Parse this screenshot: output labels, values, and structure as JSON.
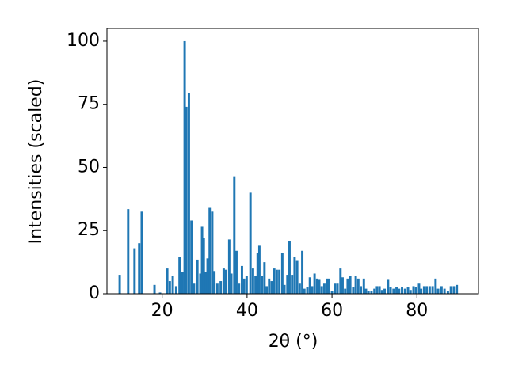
{
  "chart_data": {
    "type": "bar",
    "x_label": "2θ (°)",
    "y_label": "Intensities (scaled)",
    "color": "#1f77b4",
    "x": [
      10.0,
      12.0,
      13.5,
      14.6,
      15.2,
      18.2,
      19.5,
      21.2,
      21.8,
      22.5,
      23.3,
      24.1,
      24.8,
      25.3,
      25.7,
      26.3,
      26.9,
      27.5,
      28.3,
      29.0,
      29.4,
      29.8,
      30.3,
      30.7,
      31.2,
      31.8,
      32.3,
      33.0,
      33.8,
      34.5,
      35.0,
      35.8,
      36.3,
      37.0,
      37.5,
      38.1,
      38.8,
      39.3,
      39.9,
      40.8,
      41.4,
      42.0,
      42.5,
      42.9,
      43.5,
      44.1,
      44.6,
      45.2,
      45.8,
      46.4,
      47.0,
      47.6,
      48.3,
      48.8,
      49.5,
      50.0,
      50.6,
      51.2,
      51.8,
      52.4,
      53.0,
      53.5,
      54.2,
      54.8,
      55.3,
      55.9,
      56.5,
      57.0,
      57.6,
      58.2,
      58.8,
      59.3,
      60.0,
      60.7,
      61.3,
      62.0,
      62.5,
      63.1,
      63.7,
      64.3,
      65.0,
      65.6,
      66.2,
      66.8,
      67.5,
      68.0,
      68.6,
      69.3,
      70.0,
      70.6,
      71.2,
      71.8,
      72.4,
      73.2,
      73.8,
      74.5,
      75.2,
      75.8,
      76.5,
      77.2,
      77.9,
      78.5,
      79.2,
      79.8,
      80.5,
      81.0,
      81.7,
      82.3,
      83.0,
      83.7,
      84.4,
      85.0,
      85.8,
      86.5,
      87.3,
      88.0,
      88.7,
      89.4
    ],
    "values": [
      7.5,
      33.5,
      18,
      20,
      32.5,
      3.5,
      0.5,
      10,
      5,
      7,
      3,
      14.5,
      8.5,
      100,
      74,
      79.5,
      29,
      4,
      13.5,
      8,
      26.5,
      22,
      8.5,
      14,
      34,
      32.5,
      9,
      4,
      5,
      10,
      9.5,
      21.5,
      8,
      46.5,
      17,
      4,
      11,
      6,
      7,
      40,
      10,
      7,
      16,
      19,
      7,
      12.5,
      3,
      6,
      5,
      10,
      9.5,
      9.5,
      16,
      3.5,
      7.5,
      21,
      7.5,
      14.5,
      13,
      4,
      17,
      2,
      2.5,
      6.5,
      3,
      8,
      6,
      5.5,
      3,
      4,
      6,
      6,
      1,
      4,
      4,
      10,
      6.5,
      2,
      6,
      7,
      2.5,
      7,
      6,
      3,
      6,
      2,
      1,
      1,
      2,
      3,
      3,
      1.5,
      2,
      5.5,
      2.5,
      2,
      2.5,
      2,
      2.5,
      2,
      2.5,
      1.5,
      3,
      2.5,
      4,
      2,
      3,
      3,
      3,
      3,
      6,
      2,
      3,
      2,
      1,
      3,
      3,
      3.5
    ],
    "xlim": [
      7,
      94.5
    ],
    "ylim": [
      0,
      105
    ],
    "xticks": [
      20,
      40,
      60,
      80
    ],
    "yticks": [
      0,
      25,
      50,
      75,
      100
    ]
  }
}
